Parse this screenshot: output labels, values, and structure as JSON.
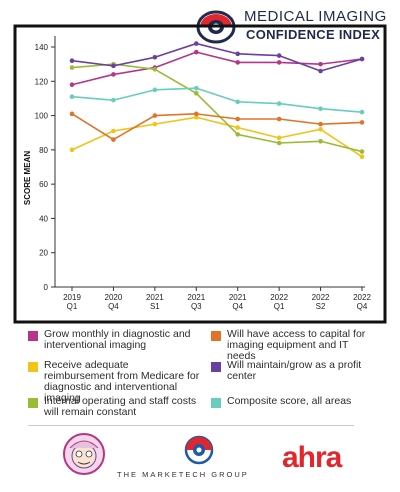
{
  "brand": {
    "title": "MEDICAL IMAGING",
    "subtitle": "CONFIDENCE INDEX"
  },
  "chart_data": {
    "type": "line",
    "ylabel": "SCORE MEAN",
    "xlabel": "",
    "ylim": [
      0,
      140
    ],
    "yticks": [
      0,
      20,
      40,
      60,
      80,
      100,
      120,
      140
    ],
    "grid": false,
    "legend_placement": "bottom",
    "categories": [
      [
        "2019",
        "Q1"
      ],
      [
        "2020",
        "Q4"
      ],
      [
        "2021",
        "S1"
      ],
      [
        "2021",
        "Q3"
      ],
      [
        "2021",
        "Q4"
      ],
      [
        "2022",
        "Q1"
      ],
      [
        "2022",
        "S2"
      ],
      [
        "2022",
        "Q4"
      ]
    ],
    "series": [
      {
        "name": "Grow monthly in diagnostic and interventional imaging",
        "color": "#b5358c",
        "values": [
          118,
          124,
          128,
          137,
          131,
          131,
          130,
          133
        ]
      },
      {
        "name": "Receive adequate reimbursement from Medicare for diagnostic and interventional imaging",
        "color": "#f0c419",
        "values": [
          80,
          91,
          95,
          99,
          93,
          87,
          92,
          76
        ]
      },
      {
        "name": "Internal operating and staff costs will remain constant",
        "color": "#9abb34",
        "values": [
          128,
          130,
          127,
          113,
          89,
          84,
          85,
          79
        ]
      },
      {
        "name": "Will have access to capital for imaging equipment and IT needs",
        "color": "#e0732a",
        "values": [
          101,
          86,
          100,
          101,
          98,
          98,
          95,
          96
        ]
      },
      {
        "name": "Will maintain/grow as a profit center",
        "color": "#6b3fa0",
        "values": [
          132,
          129,
          134,
          142,
          136,
          135,
          126,
          133
        ]
      },
      {
        "name": "Composite score, all areas",
        "color": "#67cdbf",
        "values": [
          111,
          109,
          115,
          116,
          108,
          107,
          104,
          102
        ]
      }
    ]
  },
  "legend_order": [
    0,
    3,
    1,
    4,
    2,
    5
  ],
  "footer": {
    "company_text": "THE MARKETECH GROUP",
    "partner_text": "ahra"
  }
}
